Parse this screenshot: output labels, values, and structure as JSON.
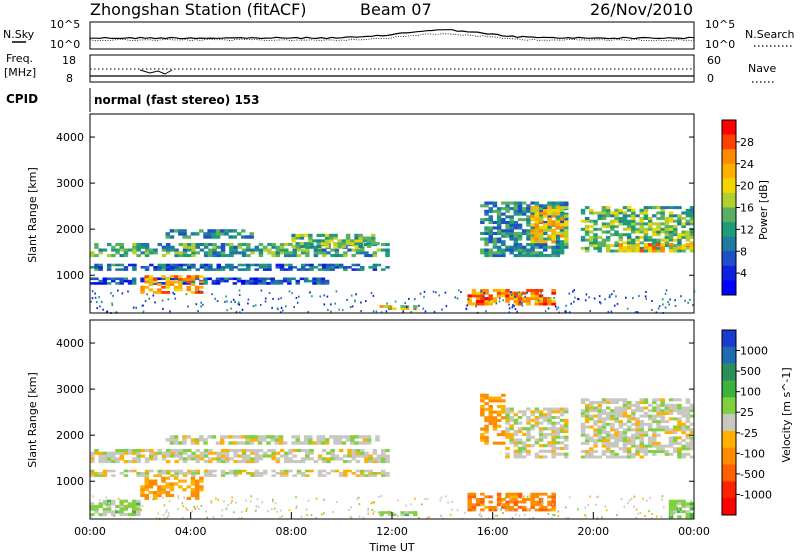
{
  "header": {
    "station": "Zhongshan Station (fitACF)",
    "beam": "Beam 07",
    "date": "26/Nov/2010"
  },
  "top_panel_labels": {
    "nsky": "N.Sky",
    "nsky_ticks": [
      "10^5",
      "10^0"
    ],
    "nsearch": "N.Search",
    "nsearch_ticks": [
      "10^5",
      "10^0"
    ],
    "freq": "Freq.",
    "freq_unit": "[MHz]",
    "freq_ticks": [
      "18",
      "8"
    ],
    "nave": "Nave",
    "nave_ticks": [
      "60",
      "0"
    ],
    "cpid": "CPID",
    "cpid_value": "normal (fast stereo) 153"
  },
  "colorbars": {
    "power": {
      "label": "Power [dB]",
      "ticks": [
        "28",
        "24",
        "20",
        "16",
        "12",
        "8",
        "4"
      ],
      "colors": [
        "#ff0000",
        "#ff4000",
        "#ff8a00",
        "#ffb000",
        "#f2d600",
        "#b0d030",
        "#58b060",
        "#1e9c7a",
        "#1e7aa0",
        "#1e50c8",
        "#1020e0",
        "#0000ff"
      ]
    },
    "velocity": {
      "label": "Velocity [m s^-1]",
      "ticks": [
        "1000",
        "500",
        "100",
        "25",
        "-25",
        "-100",
        "-500",
        "-1000"
      ],
      "colors": [
        "#1a3ccc",
        "#1f6ab0",
        "#2a8f5a",
        "#3cb33c",
        "#80d040",
        "#c8c8c0",
        "#ffb000",
        "#ff8c00",
        "#ff6000",
        "#ff2000",
        "#ff0000"
      ]
    }
  },
  "chart_data": [
    {
      "type": "heatmap",
      "name": "power",
      "ylabel": "Slant Range [km]",
      "xlim": [
        "00:00",
        "24:00"
      ],
      "ylim": [
        180,
        4500
      ],
      "yticks": [
        1000,
        2000,
        3000,
        4000
      ],
      "value_label": "Power [dB]",
      "value_range": [
        0,
        30
      ],
      "regions": [
        {
          "t0": 0.0,
          "t1": 11.9,
          "r0": 1400,
          "r1": 1700,
          "value": 12
        },
        {
          "t0": 0.0,
          "t1": 11.9,
          "r0": 1100,
          "r1": 1250,
          "value": 8
        },
        {
          "t0": 0.0,
          "t1": 9.5,
          "r0": 800,
          "r1": 950,
          "value": 6
        },
        {
          "t0": 2.0,
          "t1": 4.5,
          "r0": 600,
          "r1": 1000,
          "value": 22
        },
        {
          "t0": 3.0,
          "t1": 6.5,
          "r0": 1800,
          "r1": 2000,
          "value": 10
        },
        {
          "t0": 8.0,
          "t1": 11.5,
          "r0": 1600,
          "r1": 1900,
          "value": 14
        },
        {
          "t0": 11.5,
          "t1": 13.0,
          "r0": 250,
          "r1": 350,
          "value": 18
        },
        {
          "t0": 15.0,
          "t1": 18.5,
          "r0": 350,
          "r1": 700,
          "value": 24
        },
        {
          "t0": 15.5,
          "t1": 19.0,
          "r0": 1400,
          "r1": 2600,
          "value": 10
        },
        {
          "t0": 17.5,
          "t1": 19.0,
          "r0": 1700,
          "r1": 2500,
          "value": 20
        },
        {
          "t0": 19.5,
          "t1": 24.0,
          "r0": 1500,
          "r1": 2500,
          "value": 14
        },
        {
          "t0": 21.0,
          "t1": 24.0,
          "r0": 1500,
          "r1": 1700,
          "value": 22
        }
      ]
    },
    {
      "type": "heatmap",
      "name": "velocity",
      "ylabel": "Slant Range [km]",
      "xlabel": "Time UT",
      "xlim": [
        "00:00",
        "24:00"
      ],
      "xticks": [
        "00:00",
        "04:00",
        "08:00",
        "12:00",
        "16:00",
        "20:00",
        "00:00"
      ],
      "ylim": [
        180,
        4500
      ],
      "yticks": [
        1000,
        2000,
        3000,
        4000
      ],
      "value_label": "Velocity [m s^-1]",
      "value_range": [
        -1000,
        1000
      ],
      "regions": [
        {
          "t0": 0.0,
          "t1": 11.9,
          "r0": 1400,
          "r1": 1700,
          "value": 0
        },
        {
          "t0": 0.0,
          "t1": 11.9,
          "r0": 1100,
          "r1": 1250,
          "value": 0
        },
        {
          "t0": 3.0,
          "t1": 11.5,
          "r0": 1800,
          "r1": 2000,
          "value": 0
        },
        {
          "t0": 2.0,
          "t1": 4.5,
          "r0": 600,
          "r1": 1100,
          "value": -300
        },
        {
          "t0": 0.0,
          "t1": 2.0,
          "r0": 250,
          "r1": 600,
          "value": 150
        },
        {
          "t0": 11.5,
          "t1": 13.0,
          "r0": 250,
          "r1": 350,
          "value": 150
        },
        {
          "t0": 15.0,
          "t1": 18.5,
          "r0": 350,
          "r1": 750,
          "value": -400
        },
        {
          "t0": 15.5,
          "t1": 16.5,
          "r0": 1800,
          "r1": 2900,
          "value": -300
        },
        {
          "t0": 16.5,
          "t1": 19.0,
          "r0": 1500,
          "r1": 2600,
          "value": 0
        },
        {
          "t0": 19.5,
          "t1": 24.0,
          "r0": 1500,
          "r1": 2800,
          "value": 0
        },
        {
          "t0": 23.0,
          "t1": 24.0,
          "r0": 200,
          "r1": 600,
          "value": 200
        }
      ]
    }
  ]
}
